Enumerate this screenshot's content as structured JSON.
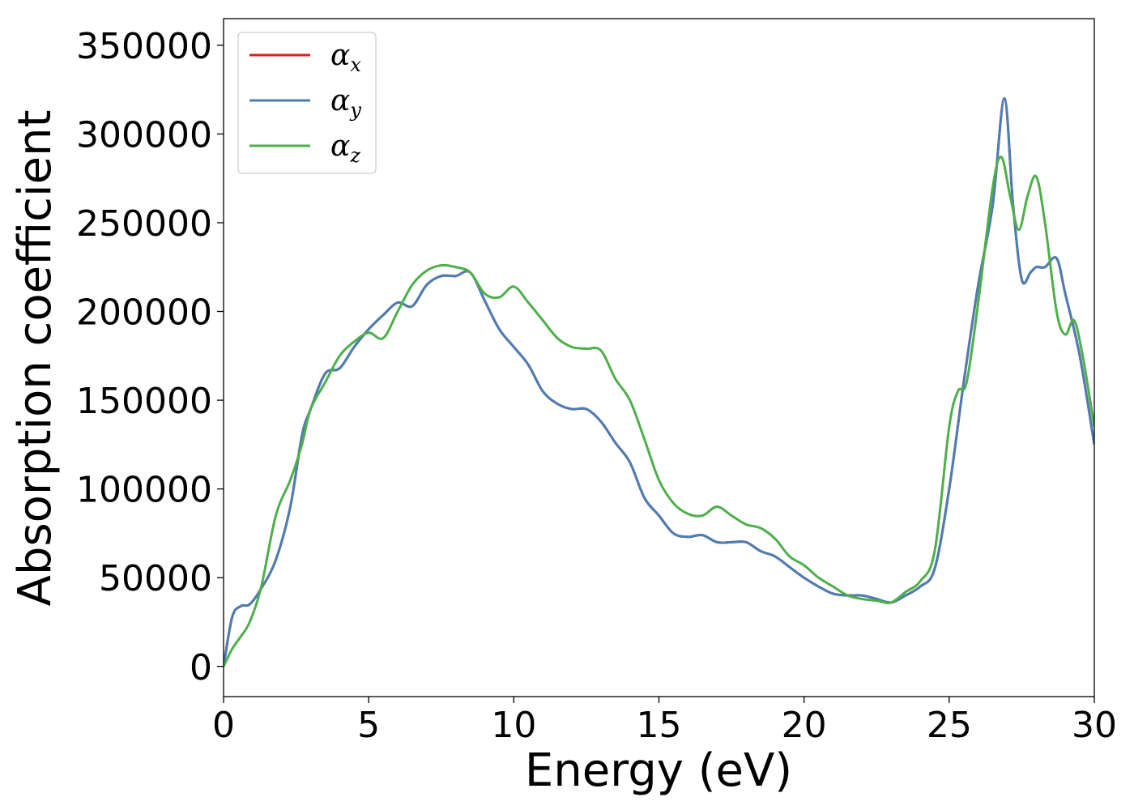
{
  "chart_data": {
    "type": "line",
    "xlabel": "Energy (eV)",
    "ylabel": "Absorption coefficient",
    "xlim": [
      0,
      30
    ],
    "ylim": [
      -17000,
      365000
    ],
    "xticks": [
      0,
      5,
      10,
      15,
      20,
      25,
      30
    ],
    "xtick_labels": [
      "0",
      "5",
      "10",
      "15",
      "20",
      "25",
      "30"
    ],
    "yticks": [
      0,
      50000,
      100000,
      150000,
      200000,
      250000,
      300000,
      350000
    ],
    "ytick_labels": [
      "0",
      "50000",
      "100000",
      "150000",
      "200000",
      "250000",
      "300000",
      "350000"
    ],
    "grid": false,
    "legend_position": "top-left",
    "series": [
      {
        "name": "αx",
        "legend_base": "α",
        "legend_sub": "x",
        "color": "#e41a1c",
        "x": [
          0,
          0.3,
          0.6,
          0.9,
          1.3,
          1.8,
          2.3,
          2.7,
          3.0,
          3.5,
          4.0,
          4.5,
          5.0,
          5.5,
          6.0,
          6.5,
          7.0,
          7.5,
          8.0,
          8.5,
          9.0,
          9.5,
          10.0,
          10.5,
          11.0,
          11.5,
          12.0,
          12.5,
          13.0,
          13.5,
          14.0,
          14.5,
          15.0,
          15.5,
          16.0,
          16.5,
          17.0,
          17.5,
          18.0,
          18.5,
          19.0,
          19.5,
          20.0,
          20.5,
          21.0,
          21.5,
          22.0,
          22.5,
          23.0,
          23.5,
          24.0,
          24.5,
          25.0,
          25.5,
          26.0,
          26.5,
          26.9,
          27.2,
          27.5,
          27.8,
          28.0,
          28.3,
          28.7,
          29.0,
          29.5,
          30.0
        ],
        "y": [
          0,
          28000,
          34000,
          35000,
          44000,
          60000,
          90000,
          130000,
          145000,
          165000,
          168000,
          180000,
          190000,
          198000,
          205000,
          203000,
          215000,
          220000,
          220000,
          222000,
          206000,
          190000,
          180000,
          170000,
          155000,
          148000,
          145000,
          145000,
          138000,
          126000,
          115000,
          95000,
          85000,
          75000,
          73000,
          74000,
          70000,
          70000,
          70000,
          65000,
          62000,
          56000,
          50000,
          45000,
          41000,
          40000,
          40000,
          38000,
          36000,
          40000,
          45000,
          55000,
          100000,
          160000,
          215000,
          260000,
          320000,
          260000,
          218000,
          222000,
          225000,
          225000,
          230000,
          210000,
          175000,
          125000
        ]
      },
      {
        "name": "αy",
        "legend_base": "α",
        "legend_sub": "y",
        "color": "#4a7eb5",
        "x": [
          0,
          0.3,
          0.6,
          0.9,
          1.3,
          1.8,
          2.3,
          2.7,
          3.0,
          3.5,
          4.0,
          4.5,
          5.0,
          5.5,
          6.0,
          6.5,
          7.0,
          7.5,
          8.0,
          8.5,
          9.0,
          9.5,
          10.0,
          10.5,
          11.0,
          11.5,
          12.0,
          12.5,
          13.0,
          13.5,
          14.0,
          14.5,
          15.0,
          15.5,
          16.0,
          16.5,
          17.0,
          17.5,
          18.0,
          18.5,
          19.0,
          19.5,
          20.0,
          20.5,
          21.0,
          21.5,
          22.0,
          22.5,
          23.0,
          23.5,
          24.0,
          24.5,
          25.0,
          25.5,
          26.0,
          26.5,
          26.9,
          27.2,
          27.5,
          27.8,
          28.0,
          28.3,
          28.7,
          29.0,
          29.5,
          30.0
        ],
        "y": [
          0,
          28000,
          34000,
          35000,
          44000,
          60000,
          90000,
          130000,
          145000,
          165000,
          168000,
          180000,
          190000,
          198000,
          205000,
          203000,
          215000,
          220000,
          220000,
          222000,
          206000,
          190000,
          180000,
          170000,
          155000,
          148000,
          145000,
          145000,
          138000,
          126000,
          115000,
          95000,
          85000,
          75000,
          73000,
          74000,
          70000,
          70000,
          70000,
          65000,
          62000,
          56000,
          50000,
          45000,
          41000,
          40000,
          40000,
          38000,
          36000,
          40000,
          45000,
          55000,
          100000,
          160000,
          215000,
          260000,
          320000,
          260000,
          218000,
          222000,
          225000,
          225000,
          230000,
          210000,
          175000,
          125000
        ]
      },
      {
        "name": "αz",
        "legend_base": "α",
        "legend_sub": "z",
        "color": "#4daf4a",
        "x": [
          0,
          0.3,
          0.6,
          0.9,
          1.3,
          1.8,
          2.3,
          2.7,
          3.0,
          3.5,
          4.0,
          4.5,
          5.0,
          5.5,
          6.0,
          6.5,
          7.0,
          7.5,
          8.0,
          8.5,
          9.0,
          9.5,
          10.0,
          10.5,
          11.0,
          11.5,
          12.0,
          12.5,
          13.0,
          13.5,
          14.0,
          14.5,
          15.0,
          15.5,
          16.0,
          16.5,
          17.0,
          17.5,
          18.0,
          18.5,
          19.0,
          19.5,
          20.0,
          20.5,
          21.0,
          21.5,
          22.0,
          22.5,
          23.0,
          23.5,
          24.0,
          24.5,
          25.0,
          25.3,
          25.6,
          26.0,
          26.5,
          26.8,
          27.1,
          27.4,
          27.7,
          28.0,
          28.3,
          28.7,
          29.0,
          29.3,
          29.6,
          30.0
        ],
        "y": [
          0,
          10000,
          17000,
          25000,
          45000,
          85000,
          105000,
          125000,
          145000,
          160000,
          175000,
          183000,
          188000,
          185000,
          200000,
          215000,
          223000,
          226000,
          225000,
          222000,
          210000,
          208000,
          214000,
          205000,
          195000,
          185000,
          180000,
          179000,
          178000,
          162000,
          150000,
          128000,
          105000,
          92000,
          86000,
          85000,
          90000,
          85000,
          80000,
          78000,
          72000,
          62000,
          57000,
          50000,
          45000,
          40000,
          38000,
          37000,
          36000,
          42000,
          48000,
          65000,
          135000,
          155000,
          160000,
          205000,
          270000,
          287000,
          265000,
          246000,
          265000,
          276000,
          250000,
          200000,
          187000,
          195000,
          175000,
          135000
        ]
      }
    ]
  }
}
